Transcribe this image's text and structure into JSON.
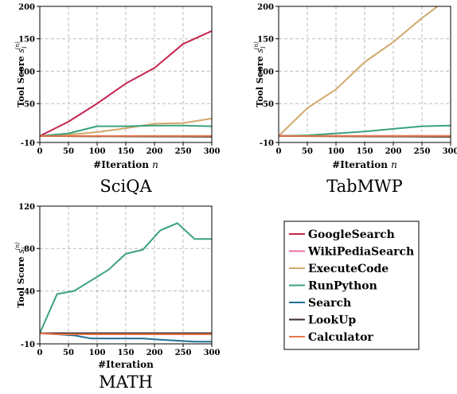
{
  "chart_data": [
    {
      "type": "line",
      "title": "SciQA",
      "xlabel": "#Iteration n",
      "ylabel": "Tool Score s_i^(n)",
      "xlim": [
        0,
        300
      ],
      "ylim": [
        -10,
        200
      ],
      "xticks": [
        0,
        50,
        100,
        150,
        200,
        250,
        300
      ],
      "yticks": [
        -10,
        50,
        100,
        150,
        200
      ],
      "grid": true,
      "series": [
        {
          "name": "GoogleSearch",
          "x": [
            0,
            50,
            100,
            150,
            200,
            250,
            300
          ],
          "y": [
            0,
            22,
            50,
            81,
            105,
            142,
            162
          ]
        },
        {
          "name": "WikiPediaSearch",
          "x": [
            0,
            300
          ],
          "y": [
            0,
            0
          ]
        },
        {
          "name": "ExecuteCode",
          "x": [
            0,
            50,
            100,
            150,
            200,
            250,
            300
          ],
          "y": [
            0,
            2,
            6,
            12,
            19,
            20,
            27
          ]
        },
        {
          "name": "RunPython",
          "x": [
            0,
            50,
            100,
            150,
            200,
            250,
            300
          ],
          "y": [
            0,
            4,
            15,
            15,
            16,
            16,
            15
          ]
        },
        {
          "name": "Search",
          "x": [
            0,
            300
          ],
          "y": [
            0,
            -1
          ]
        },
        {
          "name": "LookUp",
          "x": [
            0,
            300
          ],
          "y": [
            0,
            -1
          ]
        },
        {
          "name": "Calculator",
          "x": [
            0,
            300
          ],
          "y": [
            0,
            0
          ]
        }
      ]
    },
    {
      "type": "line",
      "title": "TabMWP",
      "xlabel": "#Iteration n",
      "ylabel": "Tool Score s_i^(n)",
      "xlim": [
        0,
        300
      ],
      "ylim": [
        -10,
        200
      ],
      "xticks": [
        0,
        50,
        100,
        150,
        200,
        250,
        300
      ],
      "yticks": [
        -10,
        50,
        100,
        150,
        200
      ],
      "grid": true,
      "series": [
        {
          "name": "GoogleSearch",
          "x": [
            0,
            300
          ],
          "y": [
            0,
            0
          ]
        },
        {
          "name": "WikiPediaSearch",
          "x": [
            0,
            300
          ],
          "y": [
            0,
            0
          ]
        },
        {
          "name": "ExecuteCode",
          "x": [
            0,
            50,
            100,
            150,
            200,
            250,
            280
          ],
          "y": [
            0,
            43,
            72,
            114,
            145,
            182,
            202
          ]
        },
        {
          "name": "RunPython",
          "x": [
            0,
            50,
            100,
            150,
            200,
            250,
            300
          ],
          "y": [
            0,
            1,
            4,
            7,
            11,
            15,
            16
          ]
        },
        {
          "name": "Search",
          "x": [
            0,
            300
          ],
          "y": [
            0,
            -1
          ]
        },
        {
          "name": "LookUp",
          "x": [
            0,
            300
          ],
          "y": [
            0,
            -1
          ]
        },
        {
          "name": "Calculator",
          "x": [
            0,
            300
          ],
          "y": [
            0,
            0
          ]
        }
      ]
    },
    {
      "type": "line",
      "title": "MATH",
      "xlabel": "#Iteration",
      "ylabel": "Tool Score s_i^(n)",
      "xlim": [
        0,
        300
      ],
      "ylim": [
        -10,
        120
      ],
      "xticks": [
        0,
        50,
        100,
        150,
        200,
        250,
        300
      ],
      "yticks": [
        -10,
        40,
        80,
        120
      ],
      "grid": true,
      "series": [
        {
          "name": "GoogleSearch",
          "x": [
            0,
            300
          ],
          "y": [
            0,
            0
          ]
        },
        {
          "name": "WikiPediaSearch",
          "x": [
            0,
            300
          ],
          "y": [
            0,
            0
          ]
        },
        {
          "name": "ExecuteCode",
          "x": [
            0,
            300
          ],
          "y": [
            0,
            0
          ]
        },
        {
          "name": "RunPython",
          "x": [
            0,
            30,
            60,
            90,
            120,
            150,
            180,
            210,
            240,
            270,
            300
          ],
          "y": [
            0,
            37,
            40,
            50,
            60,
            75,
            79,
            97,
            104,
            89,
            89
          ]
        },
        {
          "name": "Search",
          "x": [
            0,
            30,
            60,
            90,
            120,
            150,
            180,
            210,
            240,
            270,
            300
          ],
          "y": [
            0,
            -1,
            -2,
            -5,
            -5,
            -5,
            -5,
            -6,
            -7,
            -8,
            -8
          ]
        },
        {
          "name": "LookUp",
          "x": [
            0,
            300
          ],
          "y": [
            0,
            0
          ]
        },
        {
          "name": "Calculator",
          "x": [
            0,
            30,
            60,
            300
          ],
          "y": [
            0,
            -1,
            -1,
            -1
          ]
        }
      ]
    }
  ],
  "legend": {
    "placement": "bottom-right",
    "entries": [
      {
        "label": "GoogleSearch",
        "color": "#c7254e"
      },
      {
        "label": "WikiPediaSearch",
        "color": "#e96fa6"
      },
      {
        "label": "ExecuteCode",
        "color": "#d2a86d"
      },
      {
        "label": "RunPython",
        "color": "#3aa27c"
      },
      {
        "label": "Search",
        "color": "#1f6f96"
      },
      {
        "label": "LookUp",
        "color": "#3a2a2a"
      },
      {
        "label": "Calculator",
        "color": "#e8764a"
      }
    ]
  }
}
